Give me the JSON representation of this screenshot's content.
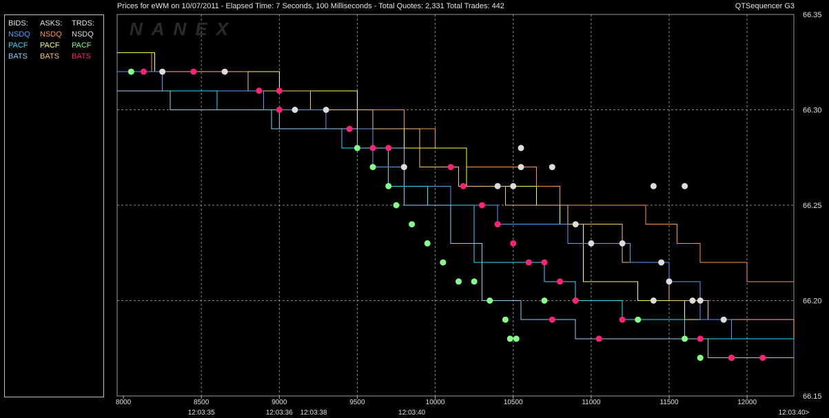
{
  "header": {
    "title": "Prices for  eWM  on  10/07/2011  -  Elapsed Time: 7 Seconds, 100 Milliseconds  -  Total Quotes: 2,331  Total Trades: 442",
    "product": "QTSequencer G3"
  },
  "watermark": "NANEX",
  "legend": {
    "bids": {
      "title": "BIDS:",
      "items": [
        {
          "label": "NSDQ",
          "color": "#5aa0ff"
        },
        {
          "label": "PACF",
          "color": "#33e0ff"
        },
        {
          "label": "BATS",
          "color": "#8ccfff"
        }
      ]
    },
    "asks": {
      "title": "ASKS:",
      "items": [
        {
          "label": "NSDQ",
          "color": "#ff9944"
        },
        {
          "label": "PACF",
          "color": "#ffff55"
        },
        {
          "label": "BATS",
          "color": "#ffc27a"
        }
      ]
    },
    "trades": {
      "title": "TRDS:",
      "items": [
        {
          "label": "NSDQ",
          "color": "#dcdcdc"
        },
        {
          "label": "PACF",
          "color": "#88ff88"
        },
        {
          "label": "BATS",
          "color": "#ff2277"
        }
      ]
    }
  },
  "chart_data": {
    "type": "line",
    "title": "Prices for  eWM  on  10/07/2011",
    "xlabel": "",
    "ylabel": "",
    "xlim": [
      7960,
      12300
    ],
    "ylim": [
      66.15,
      66.35
    ],
    "x_ticks": [
      8000,
      8500,
      9000,
      9500,
      10000,
      10500,
      11000,
      11500,
      12000
    ],
    "y_ticks": [
      66.15,
      66.2,
      66.25,
      66.3,
      66.35
    ],
    "y_tick_labels": [
      "66.15",
      "66.20",
      "66.25",
      "66.30",
      "66.35"
    ],
    "y_grid": [
      66.2,
      66.25,
      66.3
    ],
    "x_grid": [
      8500,
      9000,
      9500,
      10000,
      10500,
      11000,
      11500,
      12000
    ],
    "time_labels": [
      {
        "x": 8500,
        "label": "12:03:35"
      },
      {
        "x": 9000,
        "label": "12:03:36"
      },
      {
        "x": 9220,
        "label": "12:03:38"
      },
      {
        "x": 9850,
        "label": "12:03:40"
      },
      {
        "x": 12300,
        "label": "12:03:40>"
      }
    ],
    "series": [
      {
        "name": "NSDQ",
        "kind": "ask",
        "color": "#ff9944",
        "points": [
          [
            7960,
            66.33
          ],
          [
            8100,
            66.33
          ],
          [
            8180,
            66.32
          ],
          [
            9000,
            66.31
          ],
          [
            9500,
            66.3
          ],
          [
            9800,
            66.29
          ],
          [
            10000,
            66.28
          ],
          [
            10200,
            66.27
          ],
          [
            10650,
            66.26
          ],
          [
            10800,
            66.25
          ],
          [
            11350,
            66.24
          ],
          [
            11550,
            66.23
          ],
          [
            11700,
            66.22
          ],
          [
            12000,
            66.21
          ],
          [
            12300,
            66.21
          ]
        ]
      },
      {
        "name": "PACF",
        "kind": "ask",
        "color": "#ffff55",
        "points": [
          [
            7960,
            66.33
          ],
          [
            8200,
            66.32
          ],
          [
            9000,
            66.31
          ],
          [
            9500,
            66.29
          ],
          [
            9800,
            66.28
          ],
          [
            10200,
            66.26
          ],
          [
            10650,
            66.25
          ],
          [
            10800,
            66.24
          ],
          [
            10950,
            66.21
          ],
          [
            11300,
            66.2
          ],
          [
            11600,
            66.19
          ],
          [
            12300,
            66.19
          ]
        ]
      },
      {
        "name": "BATS",
        "kind": "ask",
        "color": "#ffc27a",
        "points": [
          [
            7960,
            66.32
          ],
          [
            8400,
            66.32
          ],
          [
            8800,
            66.31
          ],
          [
            9200,
            66.3
          ],
          [
            9600,
            66.29
          ],
          [
            9900,
            66.27
          ],
          [
            10150,
            66.26
          ],
          [
            10450,
            66.25
          ],
          [
            10850,
            66.24
          ],
          [
            11200,
            66.22
          ],
          [
            11500,
            66.2
          ],
          [
            11750,
            66.19
          ],
          [
            12300,
            66.18
          ]
        ]
      },
      {
        "name": "NSDQ",
        "kind": "bid",
        "color": "#5aa0ff",
        "points": [
          [
            7960,
            66.32
          ],
          [
            8250,
            66.31
          ],
          [
            8900,
            66.3
          ],
          [
            9300,
            66.29
          ],
          [
            9600,
            66.27
          ],
          [
            9800,
            66.26
          ],
          [
            10100,
            66.25
          ],
          [
            10400,
            66.24
          ],
          [
            10850,
            66.23
          ],
          [
            11250,
            66.22
          ],
          [
            11500,
            66.21
          ],
          [
            11700,
            66.19
          ],
          [
            11900,
            66.18
          ],
          [
            12300,
            66.17
          ]
        ]
      },
      {
        "name": "PACF",
        "kind": "bid",
        "color": "#33e0ff",
        "points": [
          [
            7960,
            66.31
          ],
          [
            8600,
            66.3
          ],
          [
            9000,
            66.29
          ],
          [
            9400,
            66.28
          ],
          [
            9700,
            66.26
          ],
          [
            9950,
            66.25
          ],
          [
            10250,
            66.22
          ],
          [
            10700,
            66.21
          ],
          [
            10900,
            66.2
          ],
          [
            11200,
            66.19
          ],
          [
            11600,
            66.18
          ],
          [
            12300,
            66.18
          ]
        ]
      },
      {
        "name": "BATS",
        "kind": "bid",
        "color": "#8ccfff",
        "points": [
          [
            7960,
            66.31
          ],
          [
            8300,
            66.3
          ],
          [
            8950,
            66.29
          ],
          [
            9500,
            66.28
          ],
          [
            9800,
            66.25
          ],
          [
            10100,
            66.23
          ],
          [
            10300,
            66.2
          ],
          [
            10550,
            66.19
          ],
          [
            10900,
            66.18
          ],
          [
            11500,
            66.18
          ],
          [
            11750,
            66.17
          ],
          [
            12300,
            66.17
          ]
        ]
      }
    ],
    "trades": [
      {
        "name": "PACF",
        "color": "#88ff88",
        "points": [
          [
            8050,
            66.32
          ],
          [
            9500,
            66.28
          ],
          [
            9600,
            66.27
          ],
          [
            9700,
            66.26
          ],
          [
            9750,
            66.25
          ],
          [
            9850,
            66.24
          ],
          [
            9950,
            66.23
          ],
          [
            10050,
            66.22
          ],
          [
            10150,
            66.21
          ],
          [
            10250,
            66.21
          ],
          [
            10350,
            66.2
          ],
          [
            10450,
            66.19
          ],
          [
            10480,
            66.18
          ],
          [
            10520,
            66.18
          ],
          [
            10700,
            66.2
          ],
          [
            10900,
            66.2
          ],
          [
            11300,
            66.19
          ],
          [
            11600,
            66.18
          ],
          [
            11700,
            66.17
          ],
          [
            11900,
            66.17
          ]
        ]
      },
      {
        "name": "BATS",
        "color": "#ff2277",
        "points": [
          [
            8130,
            66.32
          ],
          [
            8450,
            66.32
          ],
          [
            8870,
            66.31
          ],
          [
            9000,
            66.31
          ],
          [
            9000,
            66.3
          ],
          [
            9450,
            66.29
          ],
          [
            9600,
            66.28
          ],
          [
            9700,
            66.28
          ],
          [
            10100,
            66.27
          ],
          [
            10180,
            66.26
          ],
          [
            10300,
            66.25
          ],
          [
            10400,
            66.24
          ],
          [
            10500,
            66.23
          ],
          [
            10600,
            66.22
          ],
          [
            10700,
            66.22
          ],
          [
            10800,
            66.21
          ],
          [
            10900,
            66.2
          ],
          [
            10750,
            66.19
          ],
          [
            11050,
            66.18
          ],
          [
            11200,
            66.19
          ],
          [
            11700,
            66.18
          ],
          [
            11900,
            66.17
          ],
          [
            12100,
            66.17
          ]
        ]
      },
      {
        "name": "NSDQ",
        "color": "#dcdcdc",
        "points": [
          [
            8250,
            66.32
          ],
          [
            8650,
            66.32
          ],
          [
            9100,
            66.3
          ],
          [
            9300,
            66.3
          ],
          [
            9800,
            66.27
          ],
          [
            10400,
            66.26
          ],
          [
            10500,
            66.26
          ],
          [
            10550,
            66.28
          ],
          [
            10550,
            66.27
          ],
          [
            10750,
            66.27
          ],
          [
            10900,
            66.24
          ],
          [
            11000,
            66.23
          ],
          [
            11200,
            66.23
          ],
          [
            11400,
            66.26
          ],
          [
            11600,
            66.26
          ],
          [
            11450,
            66.22
          ],
          [
            11500,
            66.21
          ],
          [
            11700,
            66.2
          ],
          [
            11850,
            66.19
          ],
          [
            11400,
            66.2
          ],
          [
            11650,
            66.2
          ]
        ]
      }
    ]
  }
}
